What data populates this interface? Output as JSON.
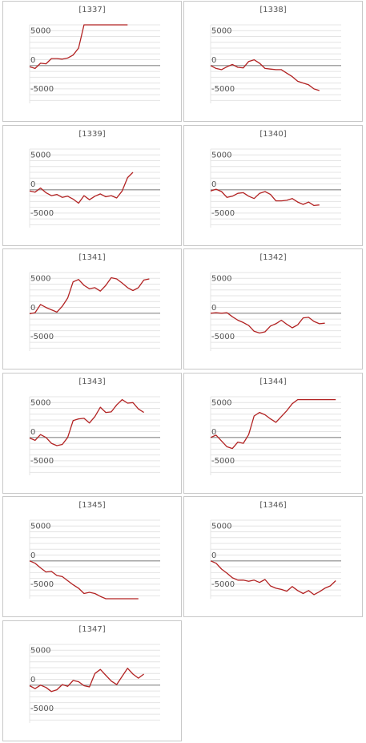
{
  "colors": {
    "line": "#b22222",
    "zero_line": "#888888",
    "grid": "#e4e4e4",
    "border": "#c8c8c8",
    "text": "#555555"
  },
  "chart_data": [
    {
      "type": "line",
      "title": "[1337]",
      "ylim": [
        -6500,
        7000
      ],
      "yticks": [
        5000,
        0,
        -5000
      ],
      "ytick_labels": [
        "5000",
        "0",
        "-5000"
      ],
      "grid": true,
      "series": [
        {
          "values": [
            -200,
            -500,
            400,
            300,
            1200,
            1200,
            1100,
            1300,
            1800,
            3000,
            7000,
            7000,
            7000,
            7000,
            7000,
            7000,
            7000,
            7000,
            7000
          ]
        }
      ]
    },
    {
      "type": "line",
      "title": "[1338]",
      "ylim": [
        -6500,
        7000
      ],
      "yticks": [
        5000,
        0,
        -5000
      ],
      "ytick_labels": [
        "5000",
        "0",
        "-5000"
      ],
      "grid": true,
      "series": [
        {
          "values": [
            0,
            -500,
            -700,
            -200,
            200,
            -300,
            -400,
            700,
            1000,
            400,
            -500,
            -600,
            -700,
            -700,
            -1300,
            -1900,
            -2700,
            -3000,
            -3300,
            -4000,
            -4300
          ]
        }
      ]
    },
    {
      "type": "line",
      "title": "[1339]",
      "ylim": [
        -6500,
        7000
      ],
      "yticks": [
        5000,
        0,
        -5000
      ],
      "ytick_labels": [
        "5000",
        "0",
        "-5000"
      ],
      "grid": true,
      "series": [
        {
          "values": [
            -200,
            -400,
            300,
            -500,
            -1000,
            -800,
            -1300,
            -1100,
            -1600,
            -2300,
            -1000,
            -1700,
            -1100,
            -700,
            -1200,
            -1000,
            -1400,
            -200,
            2100,
            3000
          ]
        }
      ]
    },
    {
      "type": "line",
      "title": "[1340]",
      "ylim": [
        -6500,
        7000
      ],
      "yticks": [
        5000,
        0,
        -5000
      ],
      "ytick_labels": [
        "5000",
        "0",
        "-5000"
      ],
      "grid": true,
      "series": [
        {
          "values": [
            -200,
            100,
            -300,
            -1300,
            -1100,
            -600,
            -500,
            -1100,
            -1500,
            -600,
            -300,
            -800,
            -1900,
            -1900,
            -1800,
            -1500,
            -2100,
            -2500,
            -2100,
            -2700,
            -2600
          ]
        }
      ]
    },
    {
      "type": "line",
      "title": "[1341]",
      "ylim": [
        -6500,
        7000
      ],
      "yticks": [
        5000,
        0,
        -5000
      ],
      "ytick_labels": [
        "5000",
        "0",
        "-5000"
      ],
      "grid": true,
      "series": [
        {
          "values": [
            -100,
            100,
            1500,
            1000,
            600,
            200,
            1200,
            2600,
            5400,
            5800,
            4800,
            4200,
            4400,
            3800,
            4800,
            6100,
            5900,
            5200,
            4400,
            3900,
            4400,
            5700,
            5900
          ]
        }
      ]
    },
    {
      "type": "line",
      "title": "[1342]",
      "ylim": [
        -6500,
        7000
      ],
      "yticks": [
        5000,
        0,
        -5000
      ],
      "ytick_labels": [
        "5000",
        "0",
        "-5000"
      ],
      "grid": true,
      "series": [
        {
          "values": [
            0,
            100,
            0,
            100,
            -600,
            -1200,
            -1600,
            -2100,
            -3100,
            -3400,
            -3200,
            -2200,
            -1800,
            -1200,
            -1900,
            -2500,
            -2000,
            -800,
            -700,
            -1400,
            -1800,
            -1700
          ]
        }
      ]
    },
    {
      "type": "line",
      "title": "[1343]",
      "ylim": [
        -6500,
        7000
      ],
      "yticks": [
        5000,
        0,
        -5000
      ],
      "ytick_labels": [
        "5000",
        "0",
        "-5000"
      ],
      "grid": true,
      "series": [
        {
          "values": [
            -100,
            -500,
            500,
            0,
            -1000,
            -1400,
            -1200,
            0,
            2900,
            3200,
            3300,
            2500,
            3600,
            5200,
            4300,
            4400,
            5600,
            6500,
            5900,
            6000,
            4900,
            4300
          ]
        }
      ]
    },
    {
      "type": "line",
      "title": "[1344]",
      "ylim": [
        -6500,
        7000
      ],
      "yticks": [
        5000,
        0,
        -5000
      ],
      "ytick_labels": [
        "5000",
        "0",
        "-5000"
      ],
      "grid": true,
      "series": [
        {
          "values": [
            0,
            400,
            -600,
            -1600,
            -1900,
            -800,
            -1000,
            500,
            3700,
            4300,
            3900,
            3200,
            2600,
            3600,
            4600,
            5800,
            6500,
            6500,
            6500,
            6500,
            6500,
            6500,
            6500,
            6500
          ]
        }
      ]
    },
    {
      "type": "line",
      "title": "[1345]",
      "ylim": [
        -6500,
        7000
      ],
      "yticks": [
        5000,
        0,
        -5000
      ],
      "ytick_labels": [
        "5000",
        "0",
        "-5000"
      ],
      "grid": true,
      "series": [
        {
          "values": [
            0,
            -400,
            -1200,
            -1900,
            -1800,
            -2500,
            -2700,
            -3400,
            -4100,
            -4700,
            -5600,
            -5400,
            -5600,
            -6100,
            -6500,
            -6500,
            -6500,
            -6500,
            -6500,
            -6500,
            -6500
          ]
        }
      ]
    },
    {
      "type": "line",
      "title": "[1346]",
      "ylim": [
        -6500,
        7000
      ],
      "yticks": [
        5000,
        0,
        -5000
      ],
      "ytick_labels": [
        "5000",
        "0",
        "-5000"
      ],
      "grid": true,
      "series": [
        {
          "values": [
            0,
            -400,
            -1400,
            -2100,
            -2900,
            -3300,
            -3300,
            -3500,
            -3300,
            -3700,
            -3200,
            -4300,
            -4700,
            -4900,
            -5200,
            -4400,
            -5100,
            -5600,
            -5100,
            -5800,
            -5300,
            -4700,
            -4300,
            -3400
          ]
        }
      ]
    },
    {
      "type": "line",
      "title": "[1347]",
      "ylim": [
        -6500,
        7000
      ],
      "yticks": [
        5000,
        0,
        -5000
      ],
      "ytick_labels": [
        "5000",
        "0",
        "-5000"
      ],
      "grid": true,
      "series": [
        {
          "values": [
            -100,
            -600,
            0,
            -400,
            -1100,
            -800,
            100,
            -200,
            800,
            600,
            -100,
            -300,
            2000,
            2700,
            1700,
            700,
            100,
            1500,
            2900,
            1900,
            1200,
            1900
          ]
        }
      ]
    }
  ]
}
